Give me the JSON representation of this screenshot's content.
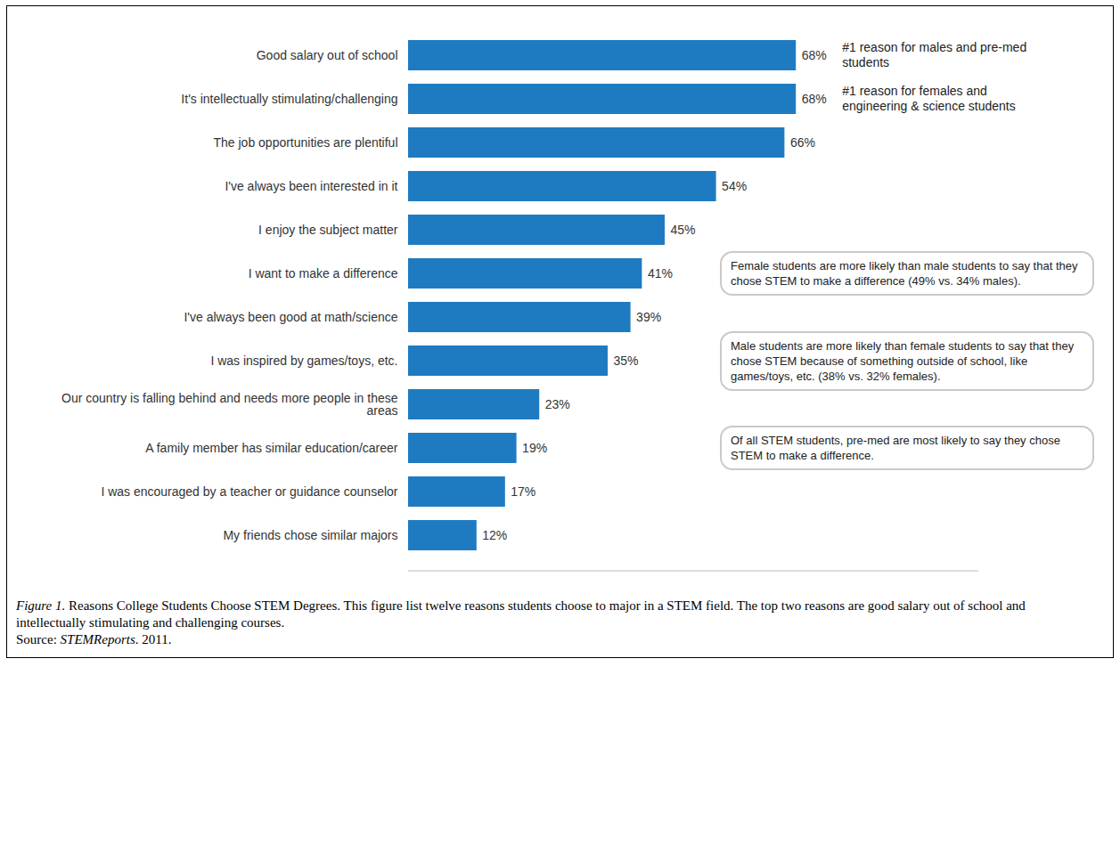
{
  "chart_data": {
    "type": "bar",
    "orientation": "horizontal",
    "categories": [
      "Good salary out of school",
      "It's intellectually stimulating/challenging",
      "The job opportunities are plentiful",
      "I've always been interested in it",
      "I enjoy the subject matter",
      "I want to make a difference",
      "I've always been good at math/science",
      "I was inspired by games/toys, etc.",
      "Our country is falling behind and needs more people in these areas",
      "A family member has similar education/career",
      "I was encouraged by a teacher or guidance counselor",
      "My friends chose similar majors"
    ],
    "values": [
      68,
      68,
      66,
      54,
      45,
      41,
      39,
      35,
      23,
      19,
      17,
      12
    ],
    "value_labels": [
      "68%",
      "68%",
      "66%",
      "54%",
      "45%",
      "41%",
      "39%",
      "35%",
      "23%",
      "19%",
      "17%",
      "12%"
    ],
    "data_labels": true,
    "tick_labels": "y",
    "grid": false,
    "color": "#1f7bc1",
    "xlim": [
      0,
      100
    ],
    "notes": [
      {
        "category": "Good salary out of school",
        "text": "#1 reason for males and pre-med students"
      },
      {
        "category": "It's intellectually stimulating/challenging",
        "text": "#1 reason for females and engineering & science students"
      }
    ],
    "callouts": [
      {
        "category": "I want to make a difference",
        "text": "Female students are more likely than male students to say that they chose STEM to make a difference (49% vs. 34% males)."
      },
      {
        "category": "I was inspired by games/toys, etc.",
        "text": "Male students are more likely than female students to say that they chose STEM because of something outside of school, like games/toys, etc. (38% vs. 32% females)."
      },
      {
        "category": "A family member has similar education/career",
        "text": "Of all STEM students, pre-med are most likely to say they chose STEM to make a difference."
      }
    ]
  },
  "caption": {
    "figure_label": "Figure 1.",
    "text": "Reasons College Students Choose STEM Degrees. This figure list twelve reasons students choose to major in a STEM field. The top two reasons are good salary out of school and intellectually stimulating and challenging courses.",
    "source_label": "Source:",
    "source_name": "STEMReports",
    "source_rest": ". 2011."
  }
}
